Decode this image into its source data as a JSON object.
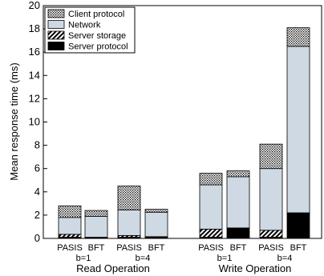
{
  "chart_data": {
    "type": "bar",
    "stacked": true,
    "title": "",
    "xlabel": "",
    "ylabel": "Mean response time (ms)",
    "ylim": [
      0,
      20
    ],
    "yticks": [
      0,
      2,
      4,
      6,
      8,
      10,
      12,
      14,
      16,
      18,
      20
    ],
    "grid": false,
    "legend_position": "top-left",
    "categories": [
      "PASIS",
      "BFT",
      "PASIS",
      "BFT",
      "PASIS",
      "BFT",
      "PASIS",
      "BFT"
    ],
    "b_labels": [
      "b=1",
      "b=4",
      "b=1",
      "b=4"
    ],
    "group_labels": [
      "Read Operation",
      "Write Operation"
    ],
    "series": [
      {
        "name": "Server protocol",
        "pattern": "solid-black",
        "values": [
          0.1,
          0.1,
          0.1,
          0.15,
          0.1,
          0.9,
          0.1,
          2.2
        ]
      },
      {
        "name": "Server storage",
        "pattern": "diagonal-hatch",
        "values": [
          0.25,
          0.0,
          0.15,
          0.0,
          0.7,
          0.0,
          0.6,
          0.0
        ]
      },
      {
        "name": "Network",
        "pattern": "light-blue",
        "values": [
          1.45,
          1.8,
          2.2,
          2.1,
          3.8,
          4.4,
          5.3,
          14.3
        ]
      },
      {
        "name": "Client protocol",
        "pattern": "dotted",
        "values": [
          1.0,
          0.5,
          2.05,
          0.25,
          1.0,
          0.5,
          2.1,
          1.6
        ]
      }
    ]
  }
}
